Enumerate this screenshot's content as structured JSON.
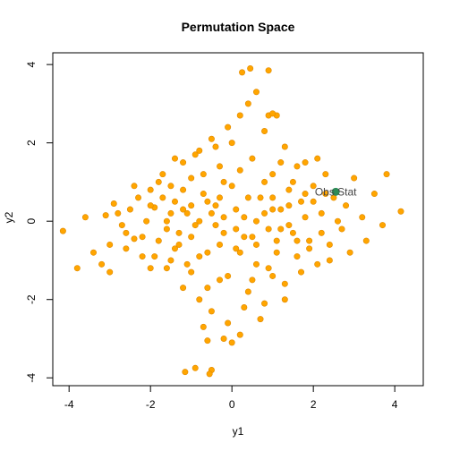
{
  "chart_data": {
    "type": "scatter",
    "title": "Permutation Space",
    "xlabel": "y1",
    "ylabel": "y2",
    "xlim": [
      -4.4,
      4.7
    ],
    "ylim": [
      -4.2,
      4.3
    ],
    "x_ticks": [
      -4,
      -2,
      0,
      2,
      4
    ],
    "y_ticks": [
      -4,
      -2,
      0,
      2,
      4
    ],
    "x_tick_labels": [
      "-4",
      "-2",
      "0",
      "2",
      "4"
    ],
    "y_tick_labels": [
      "-4",
      "-2",
      "0",
      "2",
      "4"
    ],
    "grid": false,
    "series": [
      {
        "color": "#FFA500",
        "edge_color": "#E08A00",
        "points": [
          [
            -4.15,
            -0.25
          ],
          [
            -3.8,
            -1.2
          ],
          [
            -3.6,
            0.1
          ],
          [
            -3.4,
            -0.8
          ],
          [
            -3.2,
            -1.1
          ],
          [
            -3.1,
            0.15
          ],
          [
            -3.0,
            -0.6
          ],
          [
            -2.9,
            0.45
          ],
          [
            -2.7,
            -0.1
          ],
          [
            -2.6,
            -0.7
          ],
          [
            -2.5,
            0.3
          ],
          [
            -2.4,
            -0.45
          ],
          [
            -2.3,
            0.6
          ],
          [
            -2.2,
            -0.9
          ],
          [
            -2.1,
            0.0
          ],
          [
            -2.0,
            0.8
          ],
          [
            -2.0,
            -1.2
          ],
          [
            -1.9,
            0.35
          ],
          [
            -1.8,
            -0.5
          ],
          [
            -1.7,
            1.2
          ],
          [
            -1.6,
            -0.2
          ],
          [
            -1.5,
            0.9
          ],
          [
            -1.5,
            -1.0
          ],
          [
            -1.4,
            0.5
          ],
          [
            -1.3,
            -0.6
          ],
          [
            -1.2,
            1.5
          ],
          [
            -1.2,
            -1.7
          ],
          [
            -1.1,
            0.2
          ],
          [
            -1.0,
            1.1
          ],
          [
            -1.0,
            -1.3
          ],
          [
            -0.9,
            -0.1
          ],
          [
            -0.8,
            1.8
          ],
          [
            -0.8,
            -2.0
          ],
          [
            -0.7,
            0.7
          ],
          [
            -0.6,
            -0.8
          ],
          [
            -0.5,
            2.1
          ],
          [
            -0.5,
            -2.3
          ],
          [
            -0.4,
            0.4
          ],
          [
            -0.3,
            1.4
          ],
          [
            -0.3,
            -1.5
          ],
          [
            -0.2,
            -0.3
          ],
          [
            -0.1,
            2.4
          ],
          [
            -0.1,
            -2.6
          ],
          [
            0.0,
            0.9
          ],
          [
            0.1,
            -0.7
          ],
          [
            0.2,
            2.7
          ],
          [
            0.2,
            -2.9
          ],
          [
            0.3,
            0.1
          ],
          [
            0.4,
            3.0
          ],
          [
            0.4,
            -1.8
          ],
          [
            0.5,
            1.6
          ],
          [
            0.5,
            -0.4
          ],
          [
            0.6,
            3.3
          ],
          [
            0.6,
            -1.1
          ],
          [
            0.7,
            0.6
          ],
          [
            0.8,
            2.3
          ],
          [
            0.8,
            -2.1
          ],
          [
            0.9,
            -0.2
          ],
          [
            1.0,
            1.2
          ],
          [
            1.0,
            -1.4
          ],
          [
            1.1,
            2.7
          ],
          [
            1.1,
            -0.8
          ],
          [
            1.2,
            0.3
          ],
          [
            1.3,
            1.9
          ],
          [
            1.3,
            -1.6
          ],
          [
            1.4,
            -0.1
          ],
          [
            1.5,
            1.0
          ],
          [
            1.6,
            -0.9
          ],
          [
            1.7,
            0.5
          ],
          [
            1.8,
            1.5
          ],
          [
            1.9,
            -0.5
          ],
          [
            2.0,
            0.9
          ],
          [
            2.1,
            -1.1
          ],
          [
            2.2,
            0.2
          ],
          [
            2.3,
            1.2
          ],
          [
            2.4,
            -0.6
          ],
          [
            2.5,
            0.6
          ],
          [
            2.7,
            -0.2
          ],
          [
            2.8,
            0.4
          ],
          [
            2.9,
            -0.8
          ],
          [
            3.0,
            1.1
          ],
          [
            3.2,
            0.1
          ],
          [
            3.3,
            -0.5
          ],
          [
            3.5,
            0.7
          ],
          [
            3.7,
            -0.1
          ],
          [
            3.8,
            1.2
          ],
          [
            4.15,
            0.25
          ],
          [
            0.25,
            3.8
          ],
          [
            0.45,
            3.9
          ],
          [
            0.9,
            3.85
          ],
          [
            -1.15,
            -3.85
          ],
          [
            -0.9,
            -3.75
          ],
          [
            -0.5,
            -3.8
          ],
          [
            -0.55,
            -3.9
          ],
          [
            -0.7,
            -2.7
          ],
          [
            -0.6,
            -3.05
          ],
          [
            -0.2,
            -3.0
          ],
          [
            0.0,
            -3.1
          ],
          [
            0.9,
            2.7
          ],
          [
            1.0,
            2.75
          ],
          [
            -3.0,
            -1.3
          ],
          [
            -2.8,
            0.2
          ],
          [
            -2.6,
            -0.3
          ],
          [
            -2.4,
            0.9
          ],
          [
            -2.2,
            -0.4
          ],
          [
            -2.0,
            0.4
          ],
          [
            -1.9,
            -0.9
          ],
          [
            -1.7,
            0.6
          ],
          [
            -1.6,
            -1.2
          ],
          [
            -1.5,
            0.2
          ],
          [
            -1.4,
            1.6
          ],
          [
            -1.3,
            -0.3
          ],
          [
            -1.2,
            0.8
          ],
          [
            -1.1,
            -1.1
          ],
          [
            -1.0,
            0.4
          ],
          [
            -0.9,
            1.7
          ],
          [
            -0.8,
            -0.9
          ],
          [
            -0.7,
            1.2
          ],
          [
            -0.6,
            -1.7
          ],
          [
            -0.5,
            0.2
          ],
          [
            -0.4,
            1.9
          ],
          [
            -0.3,
            -0.6
          ],
          [
            -0.2,
            1.0
          ],
          [
            -0.1,
            -1.4
          ],
          [
            0.0,
            2.0
          ],
          [
            0.1,
            -0.2
          ],
          [
            0.2,
            1.3
          ],
          [
            0.3,
            -2.2
          ],
          [
            0.4,
            0.6
          ],
          [
            0.5,
            -1.5
          ],
          [
            0.6,
            0.0
          ],
          [
            0.7,
            -2.5
          ],
          [
            0.8,
            1.0
          ],
          [
            0.9,
            -1.2
          ],
          [
            1.0,
            0.3
          ],
          [
            1.1,
            -0.5
          ],
          [
            1.2,
            1.5
          ],
          [
            1.3,
            -2.0
          ],
          [
            1.4,
            0.8
          ],
          [
            1.5,
            -0.3
          ],
          [
            1.6,
            1.4
          ],
          [
            1.7,
            -1.3
          ],
          [
            1.8,
            0.1
          ],
          [
            1.9,
            -0.7
          ],
          [
            2.0,
            0.5
          ],
          [
            2.1,
            1.6
          ],
          [
            2.2,
            -0.3
          ],
          [
            2.3,
            0.7
          ],
          [
            2.4,
            -1.0
          ],
          [
            2.6,
            0.0
          ],
          [
            -0.2,
            0.1
          ],
          [
            0.1,
            0.3
          ],
          [
            -0.4,
            -0.1
          ],
          [
            0.3,
            -0.4
          ],
          [
            -0.6,
            0.5
          ],
          [
            0.6,
            -0.6
          ],
          [
            -0.8,
            0.0
          ],
          [
            0.8,
            0.2
          ],
          [
            -0.3,
            0.6
          ],
          [
            0.2,
            -0.8
          ],
          [
            -1.8,
            1.0
          ],
          [
            -1.6,
            0.0
          ],
          [
            -1.4,
            -0.7
          ],
          [
            -1.2,
            0.3
          ],
          [
            -1.0,
            -0.4
          ],
          [
            1.0,
            0.6
          ],
          [
            1.2,
            -0.2
          ],
          [
            1.4,
            0.4
          ],
          [
            1.6,
            -0.5
          ],
          [
            1.8,
            0.7
          ]
        ]
      },
      {
        "color": "#2E8B57",
        "points": [
          [
            2.55,
            0.75
          ]
        ]
      }
    ],
    "annotations": [
      {
        "text": "Obs Stat",
        "x": 2.55,
        "y": 0.75
      }
    ]
  }
}
